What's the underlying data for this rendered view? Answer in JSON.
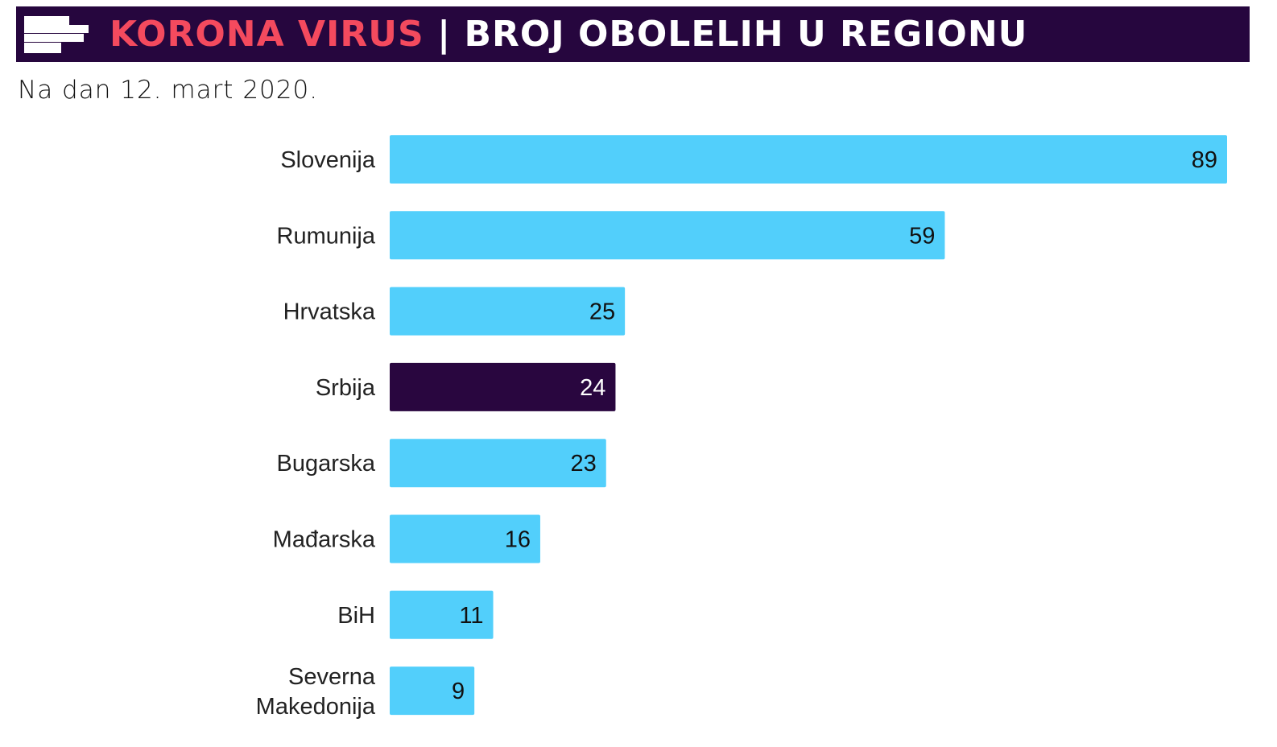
{
  "header": {
    "title_highlight": "KORONA VIRUS",
    "title_rest": "| BROJ OBOLELIH U REGIONU",
    "icon": "bars-icon"
  },
  "subtitle": "Na dan 12. mart 2020.",
  "colors": {
    "bar": "#52cffb",
    "highlight": "#29063f",
    "header_bg": "#26063e",
    "title_red": "#f44a5e"
  },
  "chart_data": {
    "type": "bar",
    "orientation": "horizontal",
    "title": "KORONA VIRUS | BROJ OBOLELIH U REGIONU",
    "subtitle": "Na dan 12. mart 2020.",
    "categories": [
      [
        "Slovenija"
      ],
      [
        "Rumunija"
      ],
      [
        "Hrvatska"
      ],
      [
        "Srbija"
      ],
      [
        "Bugarska"
      ],
      [
        "Mađarska"
      ],
      [
        "BiH"
      ],
      [
        "Severna",
        "Makedonija"
      ]
    ],
    "values": [
      89,
      59,
      25,
      24,
      23,
      16,
      11,
      9
    ],
    "highlight_index": 3,
    "xlim": [
      0,
      89
    ],
    "grid": false
  }
}
